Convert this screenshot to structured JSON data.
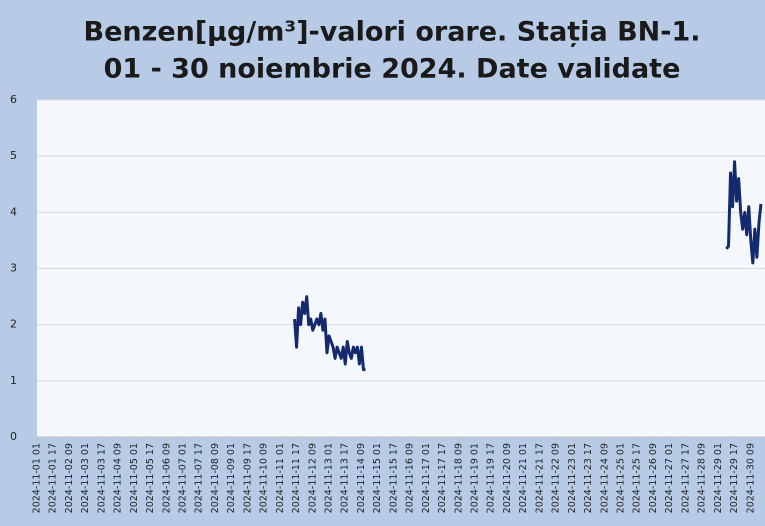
{
  "chart_data": {
    "type": "line",
    "title": [
      "Benzen[µg/m³]-valori orare. Stația BN-1.",
      "01 - 30 noiembrie  2024. Date validate"
    ],
    "xlim": [
      "2024-11-01 01",
      "2024-11-30 23"
    ],
    "xticks": [
      "2024-11-01 01",
      "2024-11-01 17",
      "2024-11-02 09",
      "2024-11-03 01",
      "2024-11-03 17",
      "2024-11-04 09",
      "2024-11-05 01",
      "2024-11-05 17",
      "2024-11-06 09",
      "2024-11-07 01",
      "2024-11-07 17",
      "2024-11-08 09",
      "2024-11-09 01",
      "2024-11-09 17",
      "2024-11-10 09",
      "2024-11-11 01",
      "2024-11-11 17",
      "2024-11-12 09",
      "2024-11-13 01",
      "2024-11-13 17",
      "2024-11-14 09",
      "2024-11-15 01",
      "2024-11-15 17",
      "2024-11-16 09",
      "2024-11-17 01",
      "2024-11-17 17",
      "2024-11-18 09",
      "2024-11-19 01",
      "2024-11-19 17",
      "2024-11-20 09",
      "2024-11-21 01",
      "2024-11-21 17",
      "2024-11-22 09",
      "2024-11-23 01",
      "2024-11-23 17",
      "2024-11-24 09",
      "2024-11-25 01",
      "2024-11-25 17",
      "2024-11-26 09",
      "2024-11-27 01",
      "2024-11-27 17",
      "2024-11-28 09",
      "2024-11-29 01",
      "2024-11-29 17",
      "2024-11-30 09"
    ],
    "ylim": [
      0,
      6
    ],
    "yticks": [
      0,
      1,
      2,
      3,
      4,
      5,
      6
    ],
    "grid": true,
    "x": [
      "2024-11-11 15",
      "2024-11-11 17",
      "2024-11-11 19",
      "2024-11-11 21",
      "2024-11-11 23",
      "2024-11-12 01",
      "2024-11-12 03",
      "2024-11-12 05",
      "2024-11-12 07",
      "2024-11-12 09",
      "2024-11-12 11",
      "2024-11-12 13",
      "2024-11-12 15",
      "2024-11-12 17",
      "2024-11-12 19",
      "2024-11-12 21",
      "2024-11-12 23",
      "2024-11-13 01",
      "2024-11-13 03",
      "2024-11-13 05",
      "2024-11-13 07",
      "2024-11-13 09",
      "2024-11-13 11",
      "2024-11-13 13",
      "2024-11-13 15",
      "2024-11-13 17",
      "2024-11-13 19",
      "2024-11-13 21",
      "2024-11-13 23",
      "2024-11-14 01",
      "2024-11-14 03",
      "2024-11-14 05",
      "2024-11-14 07",
      "2024-11-14 09",
      "2024-11-14 11",
      "2024-11-14 13",
      "2024-11-20 01",
      "2024-11-29 09",
      "2024-11-29 11",
      "2024-11-29 13",
      "2024-11-29 15",
      "2024-11-29 17",
      "2024-11-29 19",
      "2024-11-29 21",
      "2024-11-29 23",
      "2024-11-30 01",
      "2024-11-30 03",
      "2024-11-30 05",
      "2024-11-30 07",
      "2024-11-30 09",
      "2024-11-30 11",
      "2024-11-30 13",
      "2024-11-30 15",
      "2024-11-30 17",
      "2024-11-30 19"
    ],
    "series": [
      {
        "color": "#142a6e",
        "values": [
          2.1,
          1.6,
          2.3,
          2.0,
          2.4,
          2.2,
          2.5,
          2.0,
          2.1,
          1.9,
          2.0,
          2.1,
          2.0,
          2.2,
          1.9,
          2.1,
          1.5,
          1.8,
          1.7,
          1.6,
          1.4,
          1.6,
          1.5,
          1.4,
          1.6,
          1.3,
          1.7,
          1.5,
          1.4,
          1.6,
          1.5,
          1.6,
          1.3,
          1.6,
          1.2,
          1.2,
          null,
          3.35,
          3.4,
          4.7,
          4.1,
          4.9,
          4.2,
          4.6,
          4.0,
          3.7,
          4.0,
          3.6,
          4.1,
          3.5,
          3.1,
          3.7,
          3.2,
          3.8,
          4.15
        ]
      }
    ]
  }
}
